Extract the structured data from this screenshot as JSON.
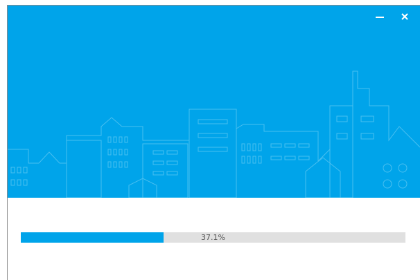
{
  "progress": {
    "value": 37.1,
    "label": "37.1%"
  }
}
